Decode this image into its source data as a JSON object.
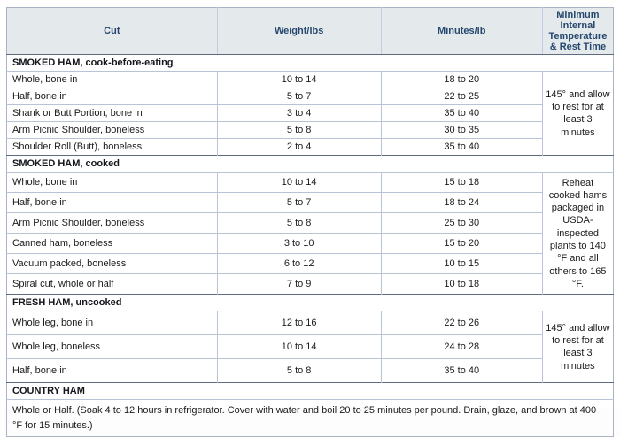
{
  "colors": {
    "header-bg": "#e4e9ec",
    "header-text": "#26476e",
    "header-grid": "#c7cbdf",
    "grid-light": "#b9c3d6",
    "grid-dark": "#5d6b80",
    "outer-border": "#a9b3c4",
    "body-text": "#1b1b1b"
  },
  "table": {
    "columns": [
      "Cut",
      "Weight/lbs",
      "Minutes/lb",
      "Minimum Internal Temperature & Rest Time"
    ],
    "sections": [
      {
        "title": "SMOKED HAM, cook-before-eating",
        "temp_note": "145° and allow to rest for at least 3 minutes",
        "rows": [
          {
            "cut": "Whole, bone in",
            "weight": "10 to 14",
            "minutes": "18 to 20"
          },
          {
            "cut": "Half, bone in",
            "weight": "5 to 7",
            "minutes": "22 to 25"
          },
          {
            "cut": "Shank or Butt Portion, bone in",
            "weight": "3 to 4",
            "minutes": "35 to 40"
          },
          {
            "cut": "Arm Picnic Shoulder, boneless",
            "weight": "5 to 8",
            "minutes": "30 to 35"
          },
          {
            "cut": "Shoulder Roll (Butt), boneless",
            "weight": "2 to 4",
            "minutes": "35 to 40"
          }
        ]
      },
      {
        "title": "SMOKED HAM, cooked",
        "temp_note": "Reheat cooked hams packaged in USDA-inspected plants to 140 °F and all others to 165 °F.",
        "rows": [
          {
            "cut": "Whole, bone in",
            "weight": "10 to 14",
            "minutes": "15 to 18"
          },
          {
            "cut": "Half, bone in",
            "weight": "5 to 7",
            "minutes": "18 to 24"
          },
          {
            "cut": "Arm Picnic Shoulder, boneless",
            "weight": "5 to 8",
            "minutes": "25 to 30"
          },
          {
            "cut": "Canned ham, boneless",
            "weight": "3 to 10",
            "minutes": "15 to 20"
          },
          {
            "cut": "Vacuum packed, boneless",
            "weight": "6 to 12",
            "minutes": "10 to 15"
          },
          {
            "cut": "Spiral cut, whole or half",
            "weight": "7 to 9",
            "minutes": "10 to 18"
          }
        ]
      },
      {
        "title": "FRESH HAM, uncooked",
        "temp_note": "145° and allow to rest for at least 3 minutes",
        "rows": [
          {
            "cut": "Whole leg, bone in",
            "weight": "12 to 16",
            "minutes": "22 to 26"
          },
          {
            "cut": "Whole leg, boneless",
            "weight": "10 to 14",
            "minutes": "24 to 28"
          },
          {
            "cut": "Half, bone in",
            "weight": "5 to 8",
            "minutes": "35 to 40"
          }
        ]
      },
      {
        "title": "COUNTRY HAM",
        "note": "Whole or Half. (Soak 4 to 12 hours in refrigerator. Cover with water and boil 20 to 25 minutes per pound. Drain, glaze, and brown at 400 °F for 15 minutes.)"
      }
    ]
  }
}
